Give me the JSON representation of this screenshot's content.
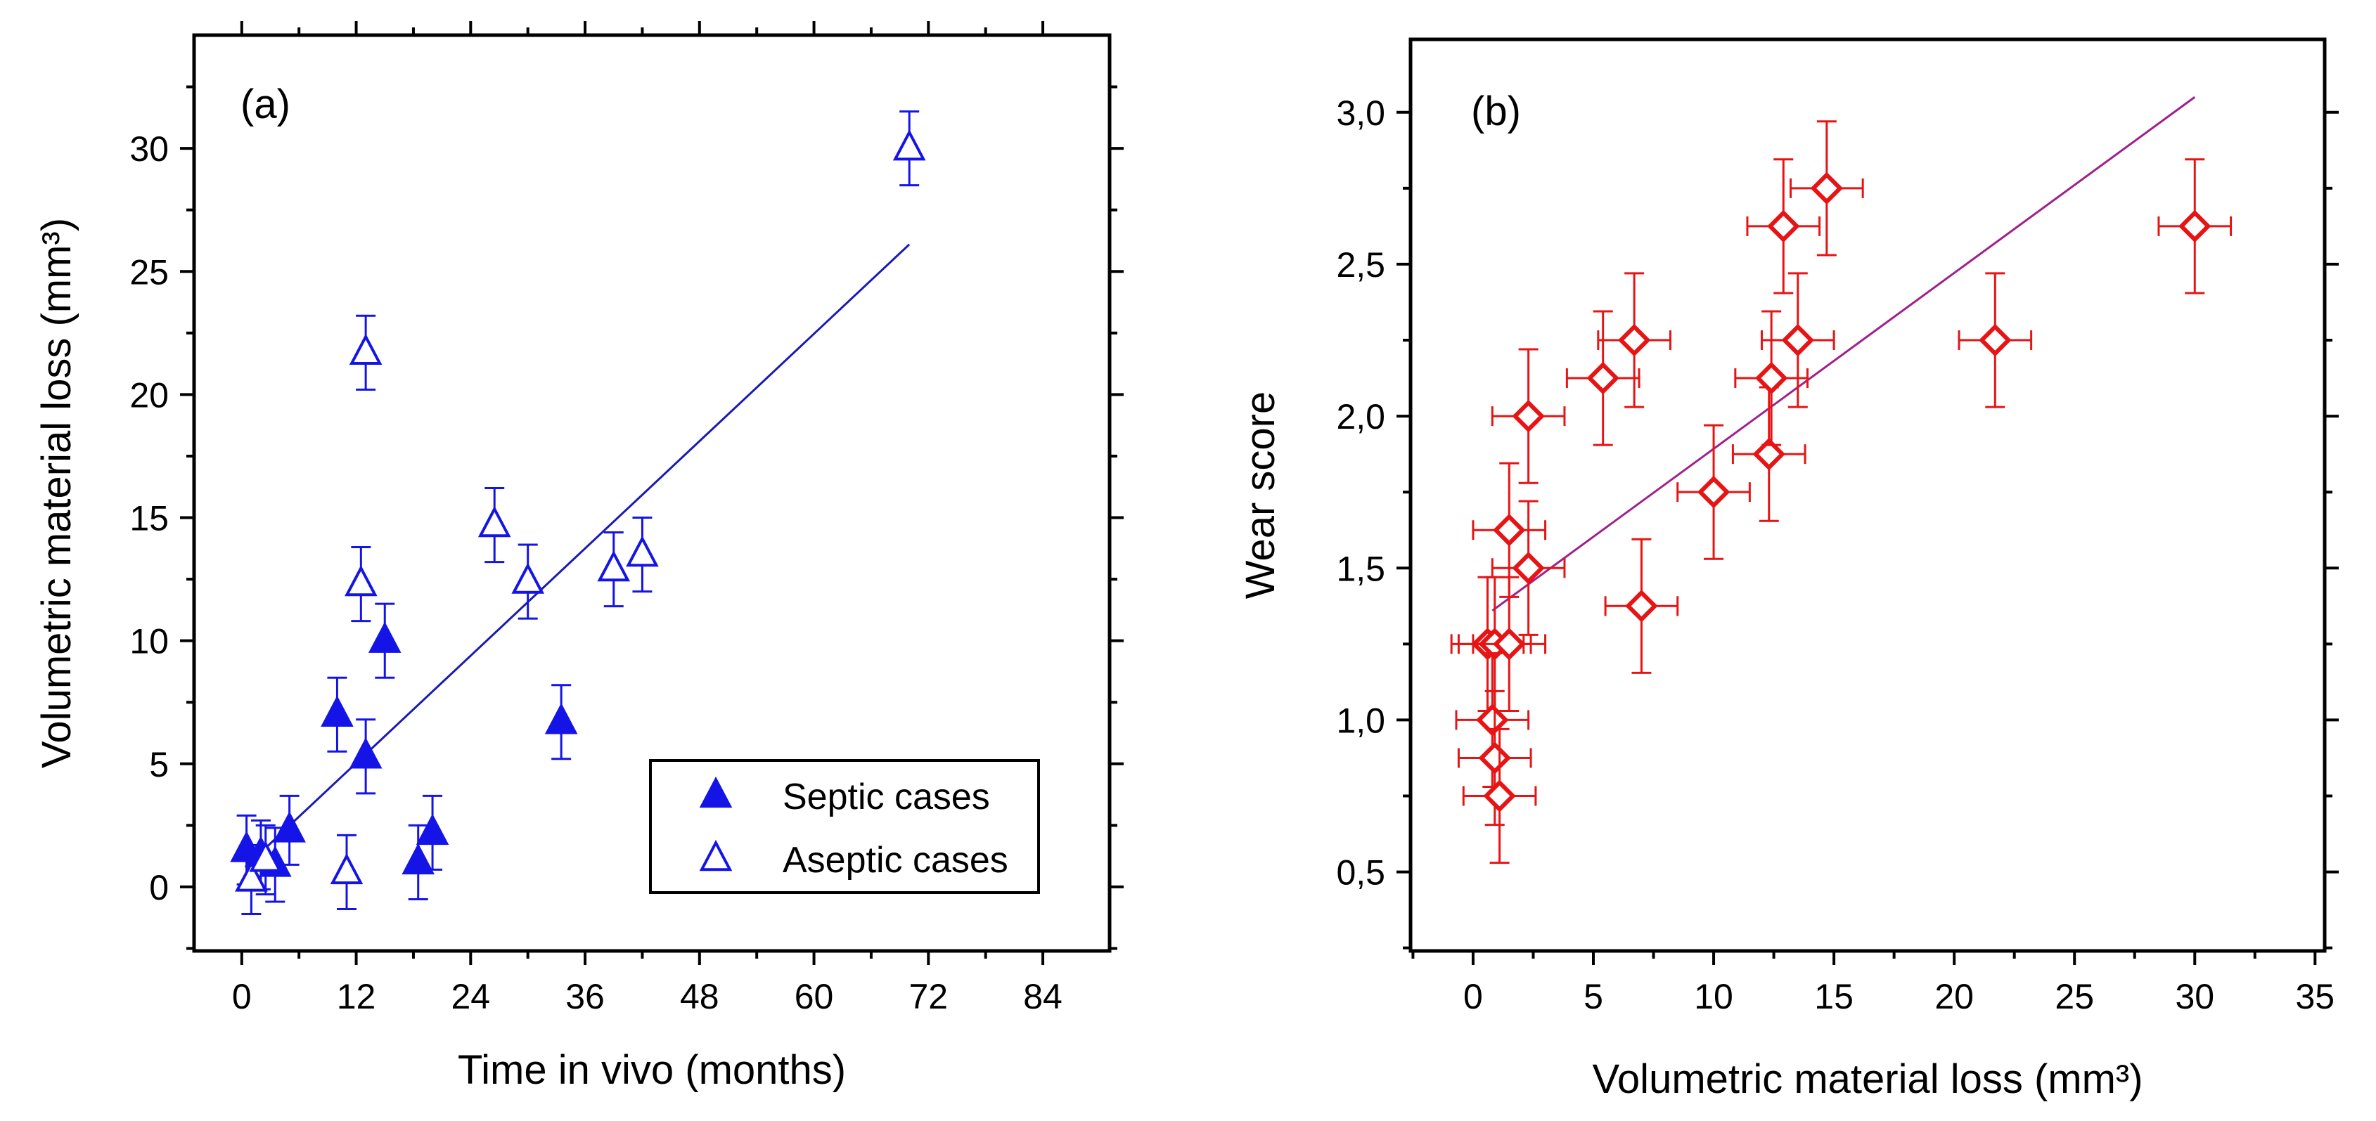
{
  "chart_data": [
    {
      "type": "scatter",
      "panel_label": "(a)",
      "title": "",
      "xlabel": "Time in vivo (months)",
      "ylabel": "Volumetric material loss (mm³)",
      "xlim": [
        -5,
        91
      ],
      "ylim": [
        -2.6,
        34.6
      ],
      "xticks": [
        0,
        12,
        24,
        36,
        48,
        60,
        72,
        84
      ],
      "xtick_labels": [
        "0",
        "12",
        "24",
        "36",
        "48",
        "60",
        "72",
        "84"
      ],
      "yticks": [
        0,
        5,
        10,
        15,
        20,
        25,
        30
      ],
      "ytick_labels": [
        "0",
        "5",
        "10",
        "15",
        "20",
        "25",
        "30"
      ],
      "grid": false,
      "legend_position": "bottom-right",
      "series": [
        {
          "name": "Septic cases",
          "marker": "filled-triangle",
          "color": "#1414e6",
          "points": [
            {
              "x": 0.5,
              "y": 1.5,
              "yerr": 1.4
            },
            {
              "x": 2,
              "y": 1.3,
              "yerr": 1.4
            },
            {
              "x": 3.5,
              "y": 0.9,
              "yerr": 1.5
            },
            {
              "x": 5,
              "y": 2.3,
              "yerr": 1.4
            },
            {
              "x": 10,
              "y": 7.0,
              "yerr": 1.5
            },
            {
              "x": 13,
              "y": 5.3,
              "yerr": 1.5
            },
            {
              "x": 15,
              "y": 10.0,
              "yerr": 1.5
            },
            {
              "x": 18.5,
              "y": 1.0,
              "yerr": 1.5
            },
            {
              "x": 20,
              "y": 2.2,
              "yerr": 1.5
            },
            {
              "x": 33.5,
              "y": 6.7,
              "yerr": 1.5
            }
          ]
        },
        {
          "name": "Aseptic cases",
          "marker": "open-triangle",
          "color": "#1414e6",
          "points": [
            {
              "x": 1,
              "y": 0.3,
              "yerr": 1.4
            },
            {
              "x": 2.5,
              "y": 1.1,
              "yerr": 1.4
            },
            {
              "x": 11,
              "y": 0.6,
              "yerr": 1.5
            },
            {
              "x": 12.5,
              "y": 12.3,
              "yerr": 1.5
            },
            {
              "x": 13,
              "y": 21.7,
              "yerr": 1.5
            },
            {
              "x": 26.5,
              "y": 14.7,
              "yerr": 1.5
            },
            {
              "x": 30,
              "y": 12.4,
              "yerr": 1.5
            },
            {
              "x": 39,
              "y": 12.9,
              "yerr": 1.5
            },
            {
              "x": 42,
              "y": 13.5,
              "yerr": 1.5
            },
            {
              "x": 70,
              "y": 30.0,
              "yerr": 1.5
            }
          ]
        }
      ],
      "fit_line": {
        "color": "#1a1ab4",
        "x": [
          2,
          70
        ],
        "y": [
          1.4,
          26.1
        ]
      }
    },
    {
      "type": "scatter",
      "panel_label": "(b)",
      "title": "",
      "xlabel": "Volumetric material loss (mm³)",
      "ylabel": "Wear score",
      "xlim": [
        -2.6,
        35.4
      ],
      "ylim": [
        0.24,
        3.24
      ],
      "xticks": [
        0,
        5,
        10,
        15,
        20,
        25,
        30,
        35
      ],
      "xtick_labels": [
        "0",
        "5",
        "10",
        "15",
        "20",
        "25",
        "30",
        "35"
      ],
      "yticks": [
        0.5,
        1.0,
        1.5,
        2.0,
        2.5,
        3.0
      ],
      "ytick_labels": [
        "0,5",
        "1,0",
        "1,5",
        "2,0",
        "2,5",
        "3,0"
      ],
      "grid": false,
      "series": [
        {
          "name": "Wear score",
          "marker": "open-diamond",
          "color": "#e61414",
          "points": [
            {
              "x": 0.6,
              "y": 1.25,
              "xerr": 1.5,
              "yerr": 0.22
            },
            {
              "x": 0.9,
              "y": 1.25,
              "xerr": 1.5,
              "yerr": 0.22
            },
            {
              "x": 1.5,
              "y": 1.25,
              "xerr": 1.5,
              "yerr": 0.22
            },
            {
              "x": 0.8,
              "y": 1.0,
              "xerr": 1.5,
              "yerr": 0.22
            },
            {
              "x": 0.9,
              "y": 0.875,
              "xerr": 1.5,
              "yerr": 0.22
            },
            {
              "x": 1.1,
              "y": 0.75,
              "xerr": 1.5,
              "yerr": 0.22
            },
            {
              "x": 1.5,
              "y": 1.625,
              "xerr": 1.5,
              "yerr": 0.22
            },
            {
              "x": 2.3,
              "y": 1.5,
              "xerr": 1.5,
              "yerr": 0.22
            },
            {
              "x": 2.3,
              "y": 2.0,
              "xerr": 1.5,
              "yerr": 0.22
            },
            {
              "x": 5.4,
              "y": 2.125,
              "xerr": 1.5,
              "yerr": 0.22
            },
            {
              "x": 6.7,
              "y": 2.25,
              "xerr": 1.5,
              "yerr": 0.22
            },
            {
              "x": 7.0,
              "y": 1.375,
              "xerr": 1.5,
              "yerr": 0.22
            },
            {
              "x": 10.0,
              "y": 1.75,
              "xerr": 1.5,
              "yerr": 0.22
            },
            {
              "x": 12.3,
              "y": 1.875,
              "xerr": 1.5,
              "yerr": 0.22
            },
            {
              "x": 12.4,
              "y": 2.125,
              "xerr": 1.5,
              "yerr": 0.22
            },
            {
              "x": 12.9,
              "y": 2.625,
              "xerr": 1.5,
              "yerr": 0.22
            },
            {
              "x": 13.5,
              "y": 2.25,
              "xerr": 1.5,
              "yerr": 0.22
            },
            {
              "x": 14.7,
              "y": 2.75,
              "xerr": 1.5,
              "yerr": 0.22
            },
            {
              "x": 21.7,
              "y": 2.25,
              "xerr": 1.5,
              "yerr": 0.22
            },
            {
              "x": 30.0,
              "y": 2.625,
              "xerr": 1.5,
              "yerr": 0.22
            }
          ]
        }
      ],
      "fit_line": {
        "color": "#a0208c",
        "x": [
          0.8,
          30
        ],
        "y": [
          1.36,
          3.05
        ]
      }
    }
  ]
}
